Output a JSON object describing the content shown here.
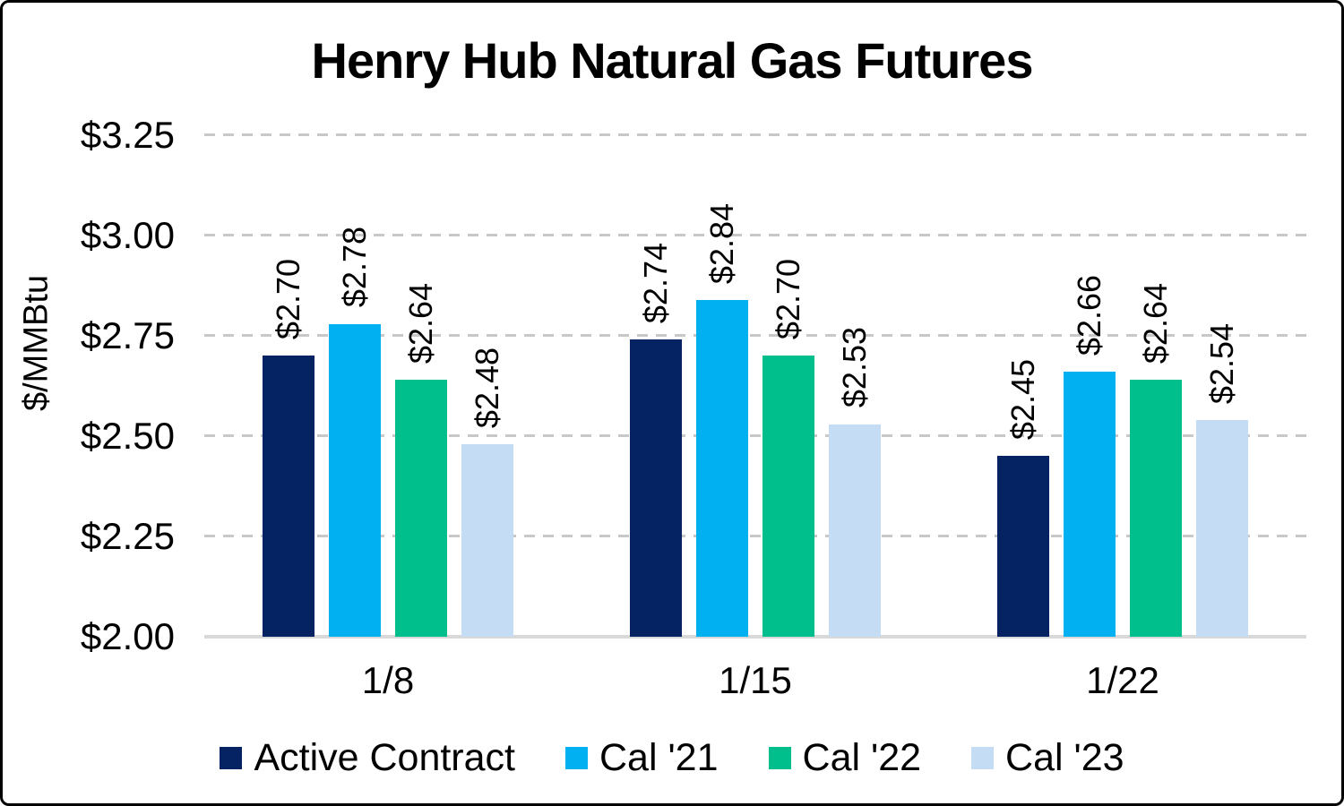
{
  "title": "Henry Hub Natural Gas Futures",
  "chart_data": {
    "type": "bar",
    "title": "Henry Hub Natural Gas Futures",
    "xlabel": "",
    "ylabel": "$/MMBtu",
    "categories": [
      "1/8",
      "1/15",
      "1/22"
    ],
    "series": [
      {
        "name": "Active Contract",
        "color": "#052262",
        "values": [
          2.7,
          2.74,
          2.45
        ],
        "labels": [
          "$2.70",
          "$2.74",
          "$2.45"
        ]
      },
      {
        "name": "Cal '21",
        "color": "#00B0F0",
        "values": [
          2.78,
          2.84,
          2.66
        ],
        "labels": [
          "$2.78",
          "$2.84",
          "$2.66"
        ]
      },
      {
        "name": "Cal '22",
        "color": "#00BF8D",
        "values": [
          2.64,
          2.7,
          2.64
        ],
        "labels": [
          "$2.64",
          "$2.70",
          "$2.64"
        ]
      },
      {
        "name": "Cal '23",
        "color": "#C5DDF4",
        "values": [
          2.48,
          2.53,
          2.54
        ],
        "labels": [
          "$2.48",
          "$2.53",
          "$2.54"
        ]
      }
    ],
    "ylim": [
      2.0,
      3.25
    ],
    "yticks": [
      {
        "label": "$3.25",
        "value": 3.25
      },
      {
        "label": "$3.00",
        "value": 3.0
      },
      {
        "label": "$2.75",
        "value": 2.75
      },
      {
        "label": "$2.50",
        "value": 2.5
      },
      {
        "label": "$2.25",
        "value": 2.25
      },
      {
        "label": "$2.00",
        "value": 2.0
      }
    ],
    "grid": "horizontal-dashed",
    "gridline_color": "#C8C8C8",
    "axis_line_color": "#D9D9D9",
    "legend_position": "bottom",
    "data_label_rotation": "vertical"
  }
}
